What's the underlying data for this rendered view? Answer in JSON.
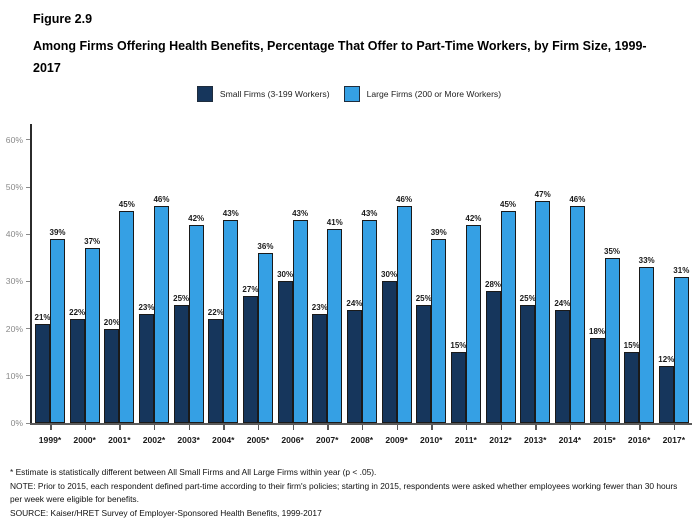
{
  "header": {
    "figure_label": "Figure 2.9",
    "title": "Among Firms Offering Health Benefits, Percentage That Offer to Part-Time Workers, by Firm Size, 1999-2017"
  },
  "legend": {
    "items": [
      {
        "label": "Small Firms (3-199 Workers)",
        "color": "#16365C"
      },
      {
        "label": "Large Firms (200 or More Workers)",
        "color": "#35A0E4"
      }
    ]
  },
  "chart_data": {
    "type": "bar",
    "title": "Among Firms Offering Health Benefits, Percentage That Offer to Part-Time Workers, by Firm Size, 1999-2017",
    "categories": [
      "1999*",
      "2000*",
      "2001*",
      "2002*",
      "2003*",
      "2004*",
      "2005*",
      "2006*",
      "2007*",
      "2008*",
      "2009*",
      "2010*",
      "2011*",
      "2012*",
      "2013*",
      "2014*",
      "2015*",
      "2016*",
      "2017*"
    ],
    "series": [
      {
        "name": "Small Firms (3-199 Workers)",
        "color": "#16365C",
        "values": [
          21,
          22,
          20,
          23,
          25,
          22,
          27,
          30,
          23,
          24,
          30,
          25,
          15,
          28,
          25,
          24,
          18,
          15,
          12
        ]
      },
      {
        "name": "Large Firms (200 or More Workers)",
        "color": "#35A0E4",
        "values": [
          39,
          37,
          45,
          46,
          42,
          43,
          36,
          43,
          41,
          43,
          46,
          39,
          42,
          45,
          47,
          46,
          35,
          33,
          31
        ]
      }
    ],
    "value_suffix": "%",
    "xlabel": "",
    "ylabel": "",
    "ylim": [
      0,
      60
    ],
    "y_ticks": [
      "0%",
      "10%",
      "20%",
      "30%",
      "40%",
      "50%",
      "60%"
    ],
    "grid": false,
    "legend_position": "top",
    "data_labels": true
  },
  "footnotes": [
    "* Estimate is statistically different between All Small Firms and All Large Firms within year (p < .05).",
    "NOTE: Prior to 2015, each respondent defined part-time according to their firm's policies; starting in 2015, respondents were asked whether employees working fewer than 30 hours per week were eligible for benefits.",
    "SOURCE: Kaiser/HRET Survey of Employer-Sponsored Health Benefits, 1999-2017"
  ]
}
